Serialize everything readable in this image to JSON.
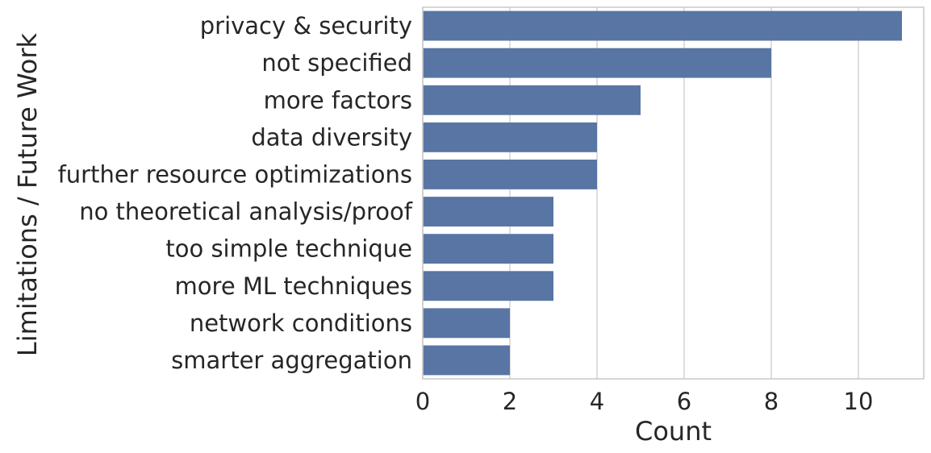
{
  "chart_data": {
    "type": "bar",
    "orientation": "horizontal",
    "categories": [
      "privacy & security",
      "not specified",
      "more factors",
      "data diversity",
      "further resource optimizations",
      "no theoretical analysis/proof",
      "too simple technique",
      "more ML techniques",
      "network conditions",
      "smarter aggregation"
    ],
    "values": [
      11,
      8,
      5,
      4,
      4,
      3,
      3,
      3,
      2,
      2
    ],
    "xlabel": "Count",
    "ylabel": "Limitations / Future Work",
    "xlim": [
      0,
      11.5
    ],
    "xticks": [
      0,
      2,
      4,
      6,
      8,
      10
    ],
    "grid": "vertical",
    "bar_color": "#5875a4",
    "grid_color": "#d5d5d5",
    "spine_color": "#cccccc",
    "text_color": "#262626"
  }
}
